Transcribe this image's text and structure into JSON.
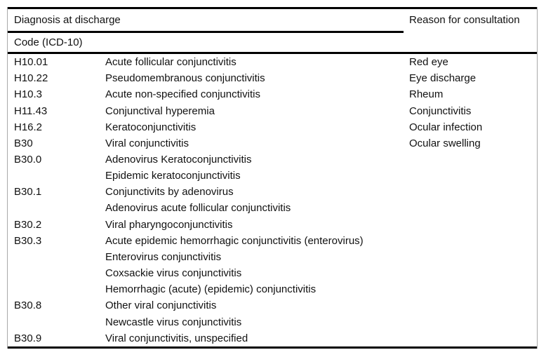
{
  "table": {
    "headers": {
      "diagnosis_group": "Diagnosis at discharge",
      "reason": "Reason for consultation",
      "code_label": "Code (ICD-10)"
    },
    "rows": [
      {
        "code": "H10.01",
        "diagnosis": "Acute follicular conjunctivitis",
        "reason": "Red eye"
      },
      {
        "code": "H10.22",
        "diagnosis": "Pseudomembranous conjunctivitis",
        "reason": "Eye discharge"
      },
      {
        "code": "H10.3",
        "diagnosis": "Acute non-specified conjunctivitis",
        "reason": "Rheum"
      },
      {
        "code": "H11.43",
        "diagnosis": "Conjunctival hyperemia",
        "reason": "Conjunctivitis"
      },
      {
        "code": "H16.2",
        "diagnosis": "Keratoconjunctivitis",
        "reason": "Ocular infection"
      },
      {
        "code": "B30",
        "diagnosis": "Viral conjunctivitis",
        "reason": "Ocular swelling"
      },
      {
        "code": "B30.0",
        "diagnosis": "Adenovirus Keratoconjunctivitis",
        "reason": ""
      },
      {
        "code": "",
        "diagnosis": "Epidemic keratoconjunctivitis",
        "reason": ""
      },
      {
        "code": "B30.1",
        "diagnosis": "Conjunctivits by adenovirus",
        "reason": ""
      },
      {
        "code": "",
        "diagnosis": "Adenovirus acute follicular conjunctivitis",
        "reason": ""
      },
      {
        "code": "B30.2",
        "diagnosis": "Viral pharyngoconjunctivitis",
        "reason": ""
      },
      {
        "code": "B30.3",
        "diagnosis": "Acute epidemic hemorrhagic conjunctivitis (enterovirus)",
        "reason": ""
      },
      {
        "code": "",
        "diagnosis": "Enterovirus conjunctivitis",
        "reason": ""
      },
      {
        "code": "",
        "diagnosis": "Coxsackie virus conjunctivitis",
        "reason": ""
      },
      {
        "code": "",
        "diagnosis": "Hemorrhagic (acute) (epidemic) conjunctivitis",
        "reason": ""
      },
      {
        "code": "B30.8",
        "diagnosis": "Other viral conjunctivitis",
        "reason": ""
      },
      {
        "code": "",
        "diagnosis": "Newcastle virus conjunctivitis",
        "reason": ""
      },
      {
        "code": "B30.9",
        "diagnosis": "Viral conjunctivitis, unspecified",
        "reason": ""
      }
    ],
    "colors": {
      "rule": "#000000",
      "side_border": "#a9a9a9",
      "text": "#111111",
      "background": "#ffffff"
    }
  }
}
